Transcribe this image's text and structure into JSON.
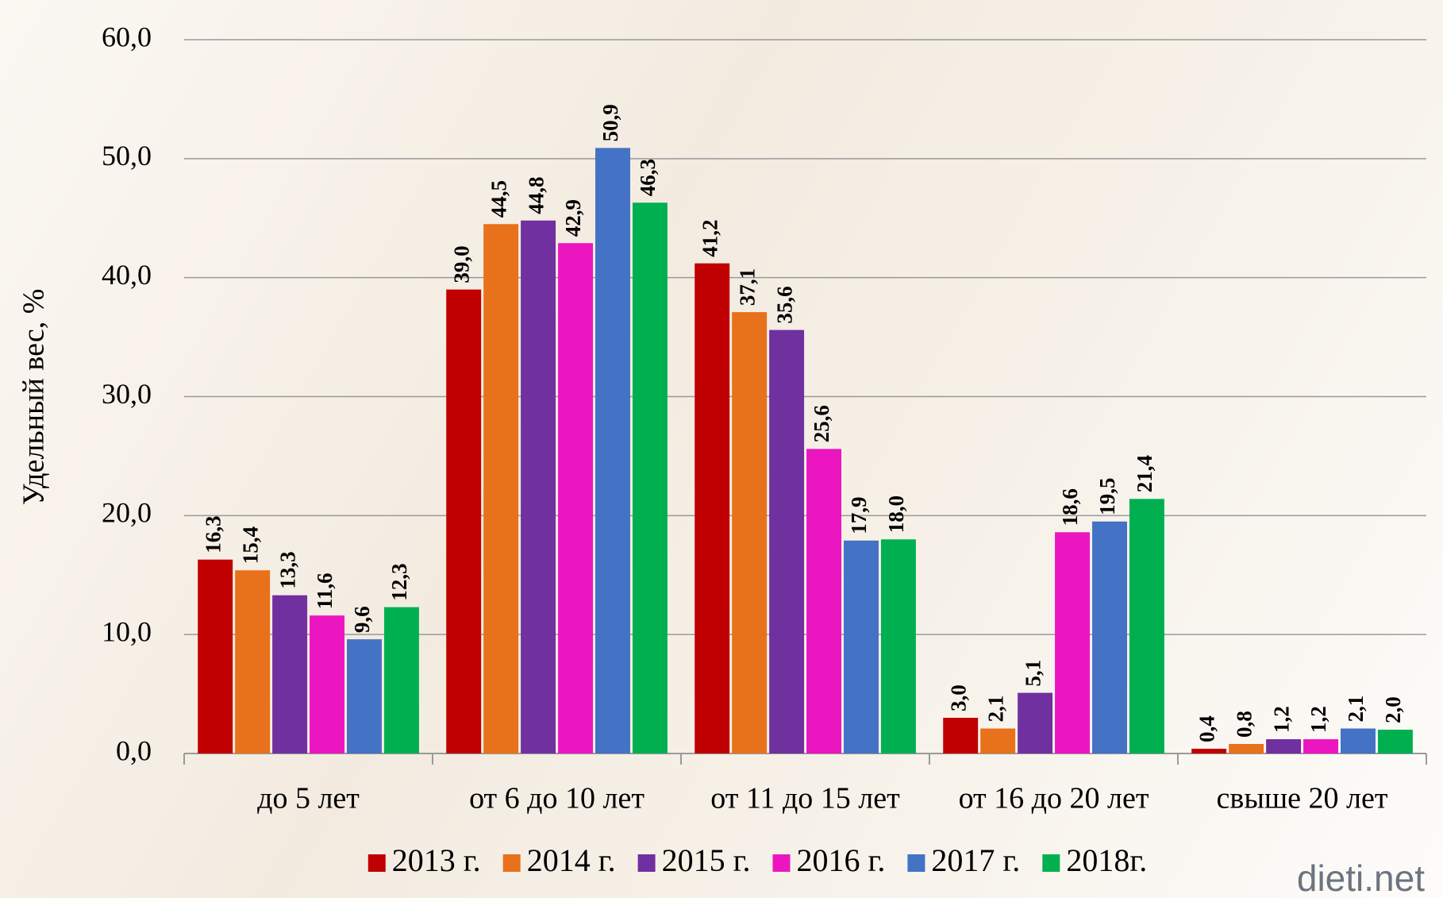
{
  "chart_data": {
    "type": "bar",
    "y_label": "Удельный вес, %",
    "watermark": "dieti.net",
    "categories": [
      "до 5 лет",
      "от 6 до 10 лет",
      "от 11 до 15 лет",
      "от 16 до 20 лет",
      "свыше 20 лет"
    ],
    "series": [
      {
        "name": "2013 г.",
        "color": "#c00000",
        "values": [
          16.3,
          39.0,
          41.2,
          3.0,
          0.4
        ],
        "value_labels": [
          "16,3",
          "39,0",
          "41,2",
          "3,0",
          "0,4"
        ]
      },
      {
        "name": "2014 г.",
        "color": "#e8711b",
        "values": [
          15.4,
          44.5,
          37.1,
          2.1,
          0.8
        ],
        "value_labels": [
          "15,4",
          "44,5",
          "37,1",
          "2,1",
          "0,8"
        ]
      },
      {
        "name": "2015 г.",
        "color": "#7030a0",
        "values": [
          13.3,
          44.8,
          35.6,
          5.1,
          1.2
        ],
        "value_labels": [
          "13,3",
          "44,8",
          "35,6",
          "5,1",
          "1,2"
        ]
      },
      {
        "name": "2016 г.",
        "color": "#ec16c0",
        "values": [
          11.6,
          42.9,
          25.6,
          18.6,
          1.2
        ],
        "value_labels": [
          "11,6",
          "42,9",
          "25,6",
          "18,6",
          "1,2"
        ]
      },
      {
        "name": "2017 г.",
        "color": "#4472c4",
        "values": [
          9.6,
          50.9,
          17.9,
          19.5,
          2.1
        ],
        "value_labels": [
          "9,6",
          "50,9",
          "17,9",
          "19,5",
          "2,1"
        ]
      },
      {
        "name": "2018г.",
        "color": "#00b050",
        "values": [
          12.3,
          46.3,
          18.0,
          21.4,
          2.0
        ],
        "value_labels": [
          "12,3",
          "46,3",
          "18,0",
          "21,4",
          "2,0"
        ]
      }
    ],
    "ylim": [
      0,
      60
    ],
    "yticks": [
      {
        "value": 0,
        "label": "0,0"
      },
      {
        "value": 10,
        "label": "10,0"
      },
      {
        "value": 20,
        "label": "20,0"
      },
      {
        "value": 30,
        "label": "30,0"
      },
      {
        "value": 40,
        "label": "40,0"
      },
      {
        "value": 50,
        "label": "50,0"
      },
      {
        "value": 60,
        "label": "60,0"
      }
    ],
    "grid": true,
    "legend": "bottom"
  }
}
